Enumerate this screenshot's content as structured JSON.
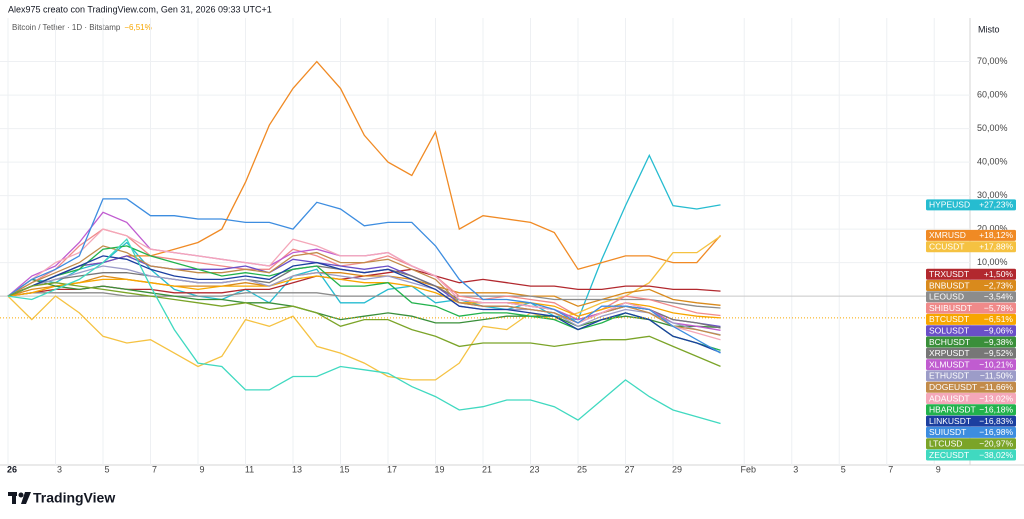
{
  "chart_data": {
    "type": "line",
    "header": "Alex975 creato con TradingView.com, Gen 31, 2026 09:33 UTC+1",
    "subtitle": "Bitcoin / Tether · 1D · Bitstamp",
    "subtitle_value": "−6,51%",
    "scale_mode": "Misto",
    "brand": "TradingView",
    "grid": true,
    "x": [
      "2026-01-01",
      "2026-01-02",
      "2026-01-03",
      "2026-01-04",
      "2026-01-05",
      "2026-01-06",
      "2026-01-07",
      "2026-01-08",
      "2026-01-09",
      "2026-01-10",
      "2026-01-11",
      "2026-01-12",
      "2026-01-13",
      "2026-01-14",
      "2026-01-15",
      "2026-01-16",
      "2026-01-17",
      "2026-01-18",
      "2026-01-19",
      "2026-01-20",
      "2026-01-21",
      "2026-01-22",
      "2026-01-23",
      "2026-01-24",
      "2026-01-25",
      "2026-01-26",
      "2026-01-27",
      "2026-01-28",
      "2026-01-29",
      "2026-01-30",
      "2026-01-31"
    ],
    "xlim": [
      "2026-01-01",
      "2026-02-10"
    ],
    "xticks": [
      {
        "value": "2026-01-01",
        "label": "26"
      },
      {
        "value": "2026-01-03",
        "label": "3"
      },
      {
        "value": "2026-01-05",
        "label": "5"
      },
      {
        "value": "2026-01-07",
        "label": "7"
      },
      {
        "value": "2026-01-09",
        "label": "9"
      },
      {
        "value": "2026-01-11",
        "label": "11"
      },
      {
        "value": "2026-01-13",
        "label": "13"
      },
      {
        "value": "2026-01-15",
        "label": "15"
      },
      {
        "value": "2026-01-17",
        "label": "17"
      },
      {
        "value": "2026-01-19",
        "label": "19"
      },
      {
        "value": "2026-01-21",
        "label": "21"
      },
      {
        "value": "2026-01-23",
        "label": "23"
      },
      {
        "value": "2026-01-25",
        "label": "25"
      },
      {
        "value": "2026-01-27",
        "label": "27"
      },
      {
        "value": "2026-01-29",
        "label": "29"
      },
      {
        "value": "2026-02-01",
        "label": "Feb"
      },
      {
        "value": "2026-02-03",
        "label": "3"
      },
      {
        "value": "2026-02-05",
        "label": "5"
      },
      {
        "value": "2026-02-07",
        "label": "7"
      },
      {
        "value": "2026-02-09",
        "label": "9"
      }
    ],
    "ylim": [
      -50.4,
      83
    ],
    "yticks": [
      {
        "value": 10,
        "label": "10,00%"
      },
      {
        "value": 20,
        "label": "20,00%"
      },
      {
        "value": 30,
        "label": "30,00%"
      },
      {
        "value": 40,
        "label": "40,00%"
      },
      {
        "value": 50,
        "label": "50,00%"
      },
      {
        "value": 60,
        "label": "60,00%"
      },
      {
        "value": 70,
        "label": "70,00%"
      }
    ],
    "series": [
      {
        "name": "HYPEUSD",
        "color": "#26bcd0",
        "value_label": "+27,23%",
        "values": [
          0,
          5,
          4,
          8,
          10,
          16,
          8,
          2,
          0,
          -1,
          2,
          -2,
          6,
          8,
          -2,
          -2,
          2,
          3,
          -2,
          -1,
          -3,
          -4,
          -2,
          -6,
          -7,
          11,
          27,
          42,
          27,
          26,
          27.23
        ]
      },
      {
        "name": "XMRUSD",
        "color": "#f08a24",
        "value_label": "+18,12%",
        "values": [
          0,
          3,
          6,
          9,
          10,
          12,
          12,
          14,
          16,
          20,
          34,
          51,
          62,
          70,
          62,
          48,
          40,
          36,
          49,
          20,
          24,
          23,
          22,
          19,
          8,
          10,
          12,
          12,
          10,
          10,
          18.12
        ]
      },
      {
        "name": "CCUSDT",
        "color": "#f5c242",
        "value_label": "+17,88%",
        "values": [
          0,
          -7,
          0,
          -5,
          -12,
          -14,
          -13,
          -17,
          -21,
          -18,
          -7,
          -9,
          -6,
          -15,
          -17,
          -20,
          -24,
          -25,
          -25,
          -20,
          -9,
          -10,
          -5,
          -7,
          -5,
          -2,
          0,
          4,
          13,
          13,
          17.88
        ]
      },
      {
        "name": "TRXUSDT",
        "color": "#b2282e",
        "value_label": "+1,50%",
        "values": [
          0,
          1,
          2,
          2,
          3,
          2,
          2,
          1,
          1,
          1,
          2,
          2,
          4,
          6,
          5,
          6,
          7,
          8,
          6,
          4,
          5,
          4,
          3,
          3,
          2,
          2,
          3,
          3,
          2,
          2,
          1.5
        ]
      },
      {
        "name": "BNBUSDT",
        "color": "#d98a1c",
        "value_label": "−2,73%",
        "values": [
          0,
          2,
          3,
          4,
          6,
          5,
          4,
          3,
          3,
          3,
          4,
          3,
          6,
          7,
          7,
          6,
          6,
          5,
          3,
          1,
          1,
          1,
          0,
          0,
          -3,
          -1,
          1,
          2,
          -1,
          -2,
          -2.73
        ]
      },
      {
        "name": "LEOUSD",
        "color": "#8c8c8c",
        "value_label": "−3,54%",
        "values": [
          0,
          1,
          1,
          1,
          1,
          0,
          0,
          0,
          0,
          0,
          1,
          1,
          1,
          1,
          0,
          0,
          0,
          0,
          0,
          0,
          0,
          0,
          0,
          -1,
          -1,
          -1,
          -1,
          -1,
          -2,
          -3,
          -3.54
        ]
      },
      {
        "name": "SHIBUSDT",
        "color": "#f08a8a",
        "value_label": "−5,78%",
        "values": [
          0,
          4,
          8,
          15,
          20,
          18,
          12,
          11,
          10,
          9,
          8,
          8,
          14,
          12,
          9,
          10,
          12,
          9,
          6,
          0,
          -1,
          0,
          -1,
          -2,
          -6,
          -4,
          0,
          -1,
          -3,
          -5,
          -5.78
        ]
      },
      {
        "name": "BTCUSDT",
        "color": "#f7a600",
        "value_label": "−6,51%",
        "values": [
          0,
          1,
          3,
          4,
          5,
          5,
          4,
          3,
          2,
          3,
          3,
          3,
          5,
          6,
          5,
          4,
          4,
          3,
          1,
          -2,
          -2,
          -2,
          -2,
          -3,
          -6,
          -4,
          -2,
          -3,
          -5,
          -6,
          -6.51
        ]
      },
      {
        "name": "SOLUSDT",
        "color": "#6a4fc8",
        "value_label": "−9,06%",
        "values": [
          0,
          3,
          6,
          9,
          10,
          12,
          9,
          8,
          8,
          8,
          9,
          7,
          11,
          10,
          9,
          8,
          9,
          6,
          3,
          -2,
          -3,
          -3,
          -4,
          -5,
          -8,
          -5,
          -3,
          -4,
          -7,
          -8,
          -9.06
        ]
      },
      {
        "name": "BCHUSDT",
        "color": "#3a8f3a",
        "value_label": "−9,38%",
        "values": [
          0,
          5,
          3,
          2,
          3,
          2,
          1,
          0,
          -1,
          -1,
          -2,
          -2,
          -3,
          -5,
          -7,
          -6,
          -5,
          -6,
          -8,
          -8,
          -7,
          -6,
          -6,
          -6,
          -9,
          -7,
          -6,
          -7,
          -9,
          -9,
          -9.38
        ]
      },
      {
        "name": "XRPUSDT",
        "color": "#777777",
        "value_label": "−9,52%",
        "values": [
          0,
          3,
          5,
          6,
          7,
          7,
          6,
          5,
          4,
          4,
          5,
          4,
          8,
          9,
          8,
          7,
          8,
          6,
          3,
          -1,
          -2,
          -2,
          -3,
          -4,
          -7,
          -5,
          -3,
          -4,
          -7,
          -8,
          -9.52
        ]
      },
      {
        "name": "XLMUSDT",
        "color": "#c05cd0",
        "value_label": "−10,21%",
        "values": [
          0,
          6,
          9,
          16,
          25,
          22,
          14,
          13,
          12,
          11,
          10,
          9,
          13,
          14,
          12,
          12,
          13,
          9,
          6,
          -1,
          -2,
          -2,
          -3,
          -4,
          -7,
          -5,
          -2,
          -4,
          -8,
          -9,
          -10.21
        ]
      },
      {
        "name": "ETHUSDT",
        "color": "#9c9cc8",
        "value_label": "−11,50%",
        "values": [
          0,
          3,
          5,
          7,
          9,
          8,
          6,
          5,
          4,
          4,
          5,
          3,
          6,
          7,
          6,
          5,
          6,
          4,
          2,
          -3,
          -4,
          -4,
          -4,
          -5,
          -9,
          -6,
          -4,
          -5,
          -8,
          -10,
          -11.5
        ]
      },
      {
        "name": "DOGEUSDT",
        "color": "#c28b4a",
        "value_label": "−11,66%",
        "values": [
          0,
          4,
          7,
          10,
          15,
          13,
          9,
          8,
          7,
          7,
          8,
          7,
          12,
          13,
          10,
          10,
          11,
          8,
          5,
          -2,
          -3,
          -3,
          -4,
          -5,
          -8,
          -5,
          -3,
          -5,
          -9,
          -10,
          -11.66
        ]
      },
      {
        "name": "ADAUSDT",
        "color": "#f4a7b9",
        "value_label": "−13,02%",
        "values": [
          0,
          5,
          10,
          13,
          20,
          18,
          14,
          13,
          12,
          11,
          10,
          9,
          17,
          15,
          12,
          12,
          13,
          9,
          6,
          -1,
          -2,
          -2,
          -3,
          -4,
          -8,
          -5,
          -2,
          -4,
          -9,
          -11,
          -13.02
        ]
      },
      {
        "name": "HBARUSDT",
        "color": "#22b24c",
        "value_label": "−16,18%",
        "values": [
          0,
          3,
          6,
          8,
          14,
          15,
          12,
          10,
          8,
          6,
          7,
          6,
          8,
          9,
          3,
          3,
          4,
          -2,
          -3,
          -6,
          -5,
          -5,
          -6,
          -7,
          -10,
          -8,
          -5,
          -7,
          -12,
          -14,
          -16.18
        ]
      },
      {
        "name": "LINKUSDT",
        "color": "#1c3fa0",
        "value_label": "−16,83%",
        "values": [
          0,
          3,
          6,
          9,
          12,
          11,
          8,
          6,
          5,
          5,
          6,
          5,
          9,
          10,
          8,
          7,
          8,
          5,
          2,
          -3,
          -4,
          -4,
          -5,
          -6,
          -10,
          -7,
          -5,
          -7,
          -12,
          -14,
          -16.83
        ]
      },
      {
        "name": "SUIUSDT",
        "color": "#3d8de0",
        "value_label": "−16,98%",
        "values": [
          0,
          5,
          8,
          12,
          29,
          29,
          24,
          24,
          23,
          23,
          22,
          22,
          20,
          28,
          26,
          21,
          22,
          22,
          15,
          5,
          -1,
          -1,
          -2,
          -4,
          -8,
          -3,
          -3,
          -4,
          -9,
          -13,
          -16.98
        ]
      },
      {
        "name": "LTCUSD",
        "color": "#7ba428",
        "value_label": "−20,97%",
        "values": [
          0,
          3,
          4,
          3,
          2,
          1,
          0,
          -1,
          -2,
          -3,
          -2,
          -4,
          -3,
          -5,
          -9,
          -7,
          -7,
          -10,
          -12,
          -15,
          -14,
          -14,
          -14,
          -15,
          -14,
          -13,
          -13,
          -12,
          -15,
          -18,
          -20.97
        ]
      },
      {
        "name": "ZECUSDT",
        "color": "#40d9c0",
        "value_label": "−38,02%",
        "values": [
          0,
          -1,
          2,
          5,
          10,
          17,
          3,
          -10,
          -20,
          -21,
          -28,
          -28,
          -24,
          -24,
          -21,
          -22,
          -23,
          -27,
          -30,
          -34,
          -33,
          -31,
          -31,
          -33,
          -37,
          -31,
          -25,
          -30,
          -34,
          -36,
          -38.02
        ]
      }
    ]
  }
}
